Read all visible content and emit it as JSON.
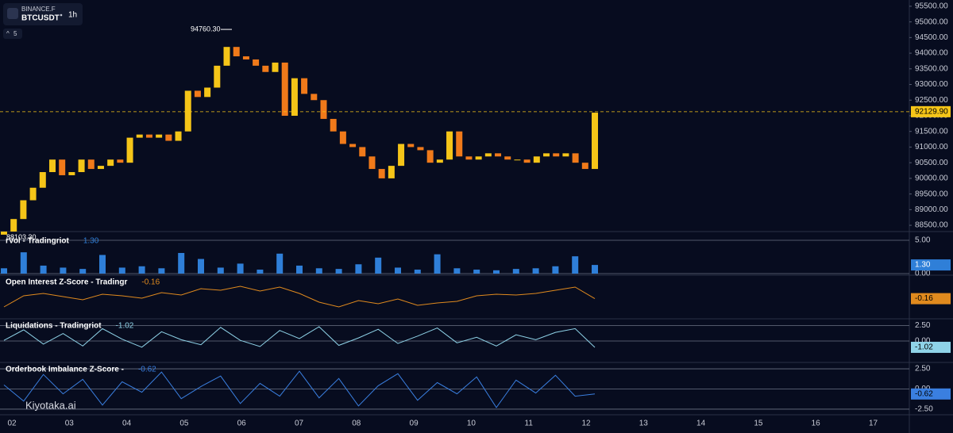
{
  "header": {
    "exchange": "BINANCE.F",
    "symbol": "BTCUSDT",
    "interval": "1h",
    "indicator_count": "5"
  },
  "watermark": "Kiyotaka.ai",
  "time_axis": {
    "labels": [
      "02",
      "03",
      "04",
      "05",
      "06",
      "07",
      "08",
      "09",
      "10",
      "11",
      "12",
      "13",
      "14",
      "15",
      "16",
      "17"
    ]
  },
  "chart_data": [
    {
      "type": "candlestick",
      "up_color": "#f5c518",
      "down_color": "#f07a1a",
      "ylim": [
        88350,
        95700
      ],
      "yticks": [
        {
          "value": 88500,
          "label": "88500.00"
        },
        {
          "value": 89000,
          "label": "89000.00"
        },
        {
          "value": 89500,
          "label": "89500.00"
        },
        {
          "value": 90000,
          "label": "90000.00"
        },
        {
          "value": 90500,
          "label": "90500.00"
        },
        {
          "value": 91000,
          "label": "91000.00"
        },
        {
          "value": 91500,
          "label": "91500.00"
        },
        {
          "value": 92000,
          "label": "92000.00"
        },
        {
          "value": 92500,
          "label": "92500.00"
        },
        {
          "value": 93000,
          "label": "93000.00"
        },
        {
          "value": 93500,
          "label": "93500.00"
        },
        {
          "value": 94000,
          "label": "94000.00"
        },
        {
          "value": 94500,
          "label": "94500.00"
        },
        {
          "value": 95000,
          "label": "95000.00"
        },
        {
          "value": 95500,
          "label": "95500.00"
        }
      ],
      "open": [
        88200,
        88300,
        88700,
        89300,
        89700,
        90200,
        90600,
        90100,
        90200,
        90600,
        90300,
        90400,
        90600,
        90500,
        91300,
        91400,
        91300,
        91400,
        91200,
        91500,
        92800,
        92600,
        92900,
        93600,
        94200,
        93900,
        93800,
        93600,
        93400,
        93700,
        92000,
        93200,
        92700,
        92500,
        91900,
        91500,
        91100,
        91000,
        90700,
        90300,
        90000,
        90400,
        91100,
        91000,
        90900,
        90500,
        90600,
        91500,
        90700,
        90600,
        90700,
        90800,
        90700,
        90600,
        90600,
        90500,
        90700,
        90800,
        90700,
        90800,
        90500,
        90300
      ],
      "close": [
        88300,
        88700,
        89300,
        89700,
        90200,
        90600,
        90100,
        90200,
        90600,
        90300,
        90400,
        90600,
        90500,
        91300,
        91400,
        91300,
        91400,
        91200,
        91500,
        92800,
        92600,
        92900,
        93600,
        94200,
        93900,
        93800,
        93600,
        93400,
        93700,
        92000,
        93200,
        92700,
        92500,
        91900,
        91500,
        91100,
        91000,
        90700,
        90300,
        90000,
        90400,
        91100,
        91000,
        90900,
        90500,
        90600,
        91500,
        90700,
        90600,
        90700,
        90800,
        90700,
        90600,
        90600,
        90500,
        90700,
        90800,
        90700,
        90800,
        90500,
        90300,
        92100
      ],
      "high_marker": {
        "value": 94760.3,
        "label": "94760.30"
      },
      "low_marker": {
        "value": 88103.3,
        "label": "88103.30"
      },
      "current_price": {
        "value": 92129.9,
        "label": "92129.90"
      }
    },
    {
      "type": "bar",
      "title": "rVol - Tradingriot",
      "color": "#2f7fd8",
      "ylim": [
        0,
        5.6
      ],
      "yticks": [
        {
          "value": 5,
          "label": "5.00"
        },
        {
          "value": 0,
          "label": "0.00"
        }
      ],
      "last": {
        "value": 1.3,
        "label": "1.30"
      },
      "values": [
        0.8,
        3.2,
        1.2,
        0.9,
        0.7,
        2.8,
        0.9,
        1.1,
        0.8,
        3.1,
        2.2,
        0.9,
        1.5,
        0.6,
        3.0,
        1.2,
        0.8,
        0.7,
        1.4,
        2.4,
        0.9,
        0.6,
        2.9,
        0.8,
        0.6,
        0.5,
        0.7,
        0.8,
        1.1,
        2.6,
        1.3
      ]
    },
    {
      "type": "line",
      "title": "Open Interest Z-Score - Tradingr",
      "color": "#e08a1e",
      "ylim": [
        -2.5,
        2.5
      ],
      "yticks": [],
      "last": {
        "value": -0.16,
        "label": "-0.16"
      },
      "values": [
        -1.2,
        0.2,
        0.5,
        0.1,
        -0.3,
        0.4,
        0.2,
        -0.1,
        0.6,
        0.3,
        1.1,
        0.9,
        1.4,
        0.8,
        1.3,
        0.5,
        -0.6,
        -1.2,
        -0.4,
        -0.8,
        -0.2,
        -1.0,
        -0.7,
        -0.5,
        0.2,
        0.4,
        0.3,
        0.5,
        0.9,
        1.3,
        -0.16
      ]
    },
    {
      "type": "line",
      "title": "Liquidations - Tradingriot",
      "color": "#8fd3e8",
      "ylim": [
        -3.2,
        3.2
      ],
      "yticks": [
        {
          "value": 2.5,
          "label": "2.50"
        },
        {
          "value": 0,
          "label": "0.00"
        }
      ],
      "last": {
        "value": -1.02,
        "label": "-1.02"
      },
      "values": [
        0.1,
        1.8,
        -0.5,
        1.2,
        -0.8,
        2.0,
        0.3,
        -1.0,
        1.5,
        0.2,
        -0.6,
        2.2,
        0.1,
        -0.9,
        1.7,
        0.4,
        2.3,
        -0.7,
        0.5,
        1.9,
        -0.4,
        0.8,
        2.1,
        -0.3,
        0.6,
        -0.8,
        1.0,
        0.2,
        1.4,
        2.0,
        -1.02
      ]
    },
    {
      "type": "line",
      "title": "Orderbook Imbalance Z-Score - ",
      "color": "#3a7fe0",
      "ylim": [
        -3,
        3
      ],
      "yticks": [
        {
          "value": 2.5,
          "label": "2.50"
        },
        {
          "value": 0,
          "label": "0.00"
        },
        {
          "value": -2.5,
          "label": "-2.50"
        }
      ],
      "last": {
        "value": -0.62,
        "label": "-0.62"
      },
      "values": [
        0.5,
        -1.5,
        1.8,
        -0.6,
        1.2,
        -2.0,
        0.9,
        -0.4,
        2.1,
        -1.2,
        0.3,
        1.6,
        -1.8,
        0.7,
        -0.9,
        2.2,
        -1.1,
        1.3,
        -2.1,
        0.4,
        1.9,
        -1.4,
        0.8,
        -0.6,
        1.5,
        -2.3,
        1.1,
        -0.5,
        1.7,
        -0.9,
        -0.62
      ]
    }
  ]
}
